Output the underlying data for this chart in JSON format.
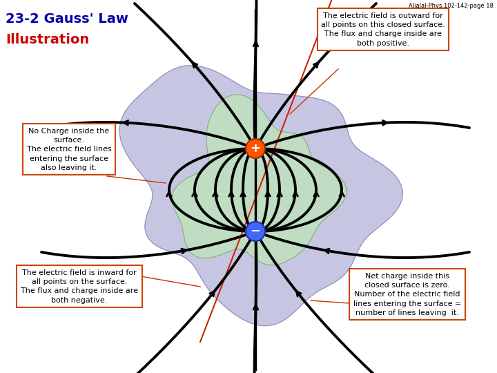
{
  "title_line1": "23-2 Gauss' Law",
  "title_line2": "Illustration",
  "header_text": "Aljalal-Phys.102-142-page 18",
  "bg_color": "#ffffff",
  "blob1_color": "#c0c0e0",
  "blob2_color": "#c0e0c0",
  "annotation1_text": "The electric field is outward for\nall points on this closed surface.\nThe flux and charge inside are\nboth positive.",
  "annotation2_text": "No Charge inside the\nsurface.\nThe electric field lines\nentering the surface\nalso leaving it.",
  "annotation3_text": "The electric field is inward for\nall points on the surface.\nThe flux and charge inside are\nboth negative.",
  "annotation4_text": "Net charge inside this\nclosed surface is zero.\nNumber of the electric field\nlines entering the surface =\nnumber of lines leaving  it.",
  "box_edge_color": "#cc4400",
  "plus_color": "#ff5500",
  "minus_color": "#4466ff"
}
